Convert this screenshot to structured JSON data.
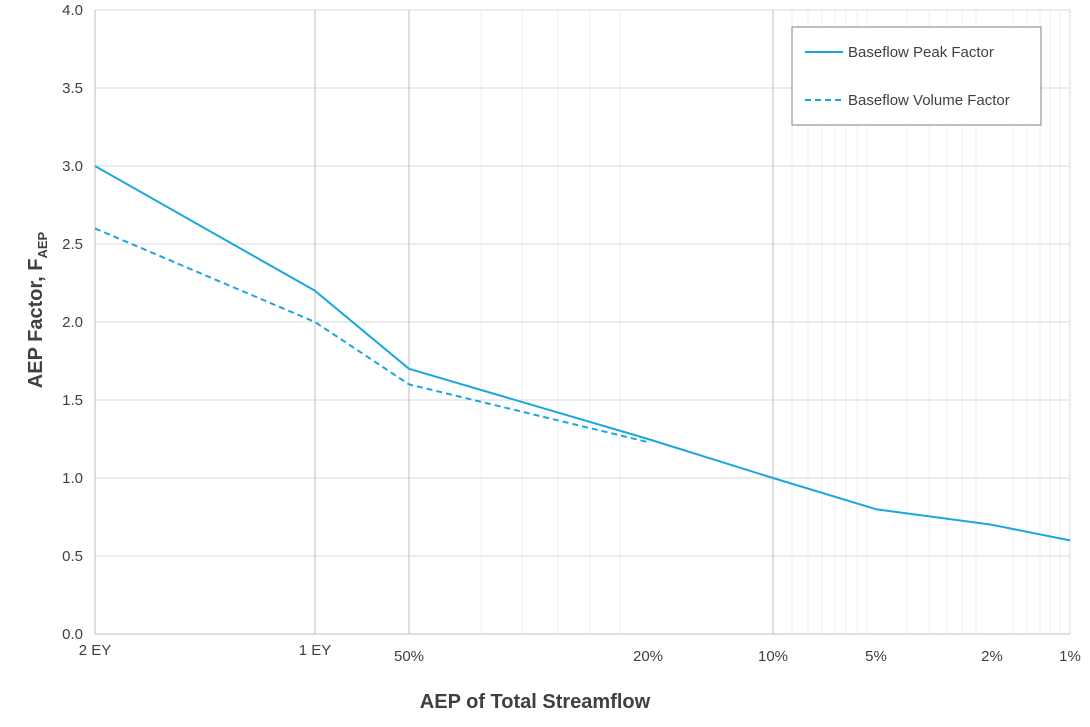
{
  "chart_data": {
    "type": "line",
    "xlabel": "AEP of Total Streamflow",
    "ylabel_main": "AEP Factor, F",
    "ylabel_sub": "AEP",
    "ylim": [
      0,
      4
    ],
    "yticks": [
      "0.0",
      "0.5",
      "1.0",
      "1.5",
      "2.0",
      "2.5",
      "3.0",
      "3.5",
      "4.0"
    ],
    "x_categories": [
      "2 EY",
      "1 EY",
      "50%",
      "20%",
      "10%",
      "5%",
      "2%",
      "1%"
    ],
    "grid": true,
    "legend_position": "top-right",
    "series": [
      {
        "name": "Baseflow Peak Factor",
        "style": "solid",
        "color": "#1aa7e0",
        "x": [
          "2 EY",
          "1 EY",
          "50%",
          "20%",
          "10%",
          "5%",
          "2%",
          "1%"
        ],
        "values": [
          3.0,
          2.2,
          1.7,
          1.25,
          1.0,
          0.8,
          0.7,
          0.6
        ]
      },
      {
        "name": "Baseflow Volume Factor",
        "style": "dashed",
        "color": "#1aa7e0",
        "x": [
          "2 EY",
          "1 EY",
          "50%",
          "20%"
        ],
        "values": [
          2.6,
          2.0,
          1.6,
          1.23
        ]
      }
    ]
  }
}
